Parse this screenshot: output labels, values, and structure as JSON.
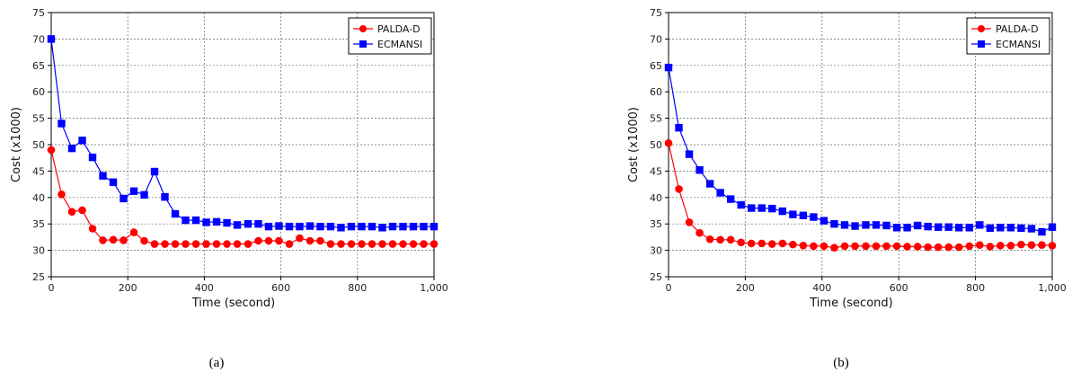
{
  "chart_data": [
    {
      "type": "line",
      "caption": "(a)",
      "xlabel": "Time (second)",
      "ylabel": "Cost (x1000)",
      "xlim": [
        0,
        1000
      ],
      "ylim": [
        25,
        75
      ],
      "x_ticks": [
        "0",
        "200",
        "400",
        "600",
        "800",
        "1,000"
      ],
      "y_ticks": [
        "25",
        "30",
        "35",
        "40",
        "45",
        "50",
        "55",
        "60",
        "65",
        "70",
        "75"
      ],
      "grid": true,
      "legend_position": "top-right",
      "series": [
        {
          "name": "PALDA-D",
          "color": "#ff0000",
          "marker": "circle",
          "x": [
            0,
            27,
            54,
            81,
            108,
            135,
            162,
            189,
            216,
            243,
            270,
            297,
            324,
            351,
            378,
            405,
            432,
            459,
            486,
            514,
            541,
            568,
            595,
            622,
            649,
            676,
            703,
            730,
            757,
            784,
            811,
            838,
            865,
            892,
            919,
            946,
            973,
            1000
          ],
          "y": [
            49.0,
            40.6,
            37.3,
            37.6,
            34.1,
            31.9,
            32.0,
            31.9,
            33.4,
            31.8,
            31.2,
            31.2,
            31.2,
            31.2,
            31.2,
            31.2,
            31.2,
            31.2,
            31.2,
            31.2,
            31.8,
            31.8,
            31.8,
            31.2,
            32.3,
            31.8,
            31.8,
            31.2,
            31.2,
            31.2,
            31.2,
            31.2,
            31.2,
            31.2,
            31.2,
            31.2,
            31.2,
            31.2
          ]
        },
        {
          "name": "ECMANSI",
          "color": "#0000ff",
          "marker": "square",
          "x": [
            0,
            27,
            54,
            81,
            108,
            135,
            162,
            189,
            216,
            243,
            270,
            297,
            324,
            351,
            378,
            405,
            432,
            459,
            486,
            514,
            541,
            568,
            595,
            622,
            649,
            676,
            703,
            730,
            757,
            784,
            811,
            838,
            865,
            892,
            919,
            946,
            973,
            1000
          ],
          "y": [
            70.0,
            54.0,
            49.3,
            50.8,
            47.6,
            44.1,
            42.9,
            39.8,
            41.2,
            40.5,
            44.9,
            40.1,
            36.9,
            35.7,
            35.7,
            35.3,
            35.4,
            35.2,
            34.8,
            35.0,
            35.0,
            34.5,
            34.6,
            34.5,
            34.5,
            34.6,
            34.5,
            34.5,
            34.3,
            34.5,
            34.5,
            34.5,
            34.3,
            34.5,
            34.5,
            34.5,
            34.5,
            34.5
          ]
        }
      ]
    },
    {
      "type": "line",
      "caption": "(b)",
      "xlabel": "Time (second)",
      "ylabel": "Cost (x1000)",
      "xlim": [
        0,
        1000
      ],
      "ylim": [
        25,
        75
      ],
      "x_ticks": [
        "0",
        "200",
        "400",
        "600",
        "800",
        "1,000"
      ],
      "y_ticks": [
        "25",
        "30",
        "35",
        "40",
        "45",
        "50",
        "55",
        "60",
        "65",
        "70",
        "75"
      ],
      "grid": true,
      "legend_position": "top-right",
      "series": [
        {
          "name": "PALDA-D",
          "color": "#ff0000",
          "marker": "circle",
          "x": [
            0,
            27,
            54,
            81,
            108,
            135,
            162,
            189,
            216,
            243,
            270,
            297,
            324,
            351,
            378,
            405,
            432,
            459,
            486,
            514,
            541,
            568,
            595,
            622,
            649,
            676,
            703,
            730,
            757,
            784,
            811,
            838,
            865,
            892,
            919,
            946,
            973,
            1000
          ],
          "y": [
            50.3,
            41.6,
            35.3,
            33.3,
            32.1,
            32.0,
            32.0,
            31.5,
            31.3,
            31.3,
            31.2,
            31.3,
            31.1,
            30.9,
            30.8,
            30.8,
            30.5,
            30.8,
            30.8,
            30.8,
            30.8,
            30.8,
            30.8,
            30.7,
            30.7,
            30.6,
            30.6,
            30.6,
            30.6,
            30.8,
            31.0,
            30.7,
            30.9,
            30.9,
            31.1,
            31.0,
            31.0,
            30.9
          ]
        },
        {
          "name": "ECMANSI",
          "color": "#0000ff",
          "marker": "square",
          "x": [
            0,
            27,
            54,
            81,
            108,
            135,
            162,
            189,
            216,
            243,
            270,
            297,
            324,
            351,
            378,
            405,
            432,
            459,
            486,
            514,
            541,
            568,
            595,
            622,
            649,
            676,
            703,
            730,
            757,
            784,
            811,
            838,
            865,
            892,
            919,
            946,
            973,
            1000
          ],
          "y": [
            64.6,
            53.2,
            48.2,
            45.2,
            42.6,
            40.9,
            39.7,
            38.6,
            38.0,
            38.0,
            37.9,
            37.4,
            36.8,
            36.6,
            36.3,
            35.6,
            35.0,
            34.8,
            34.6,
            34.8,
            34.8,
            34.7,
            34.3,
            34.3,
            34.7,
            34.5,
            34.4,
            34.4,
            34.3,
            34.3,
            34.8,
            34.2,
            34.3,
            34.3,
            34.2,
            34.1,
            33.5,
            34.4
          ]
        }
      ]
    }
  ]
}
